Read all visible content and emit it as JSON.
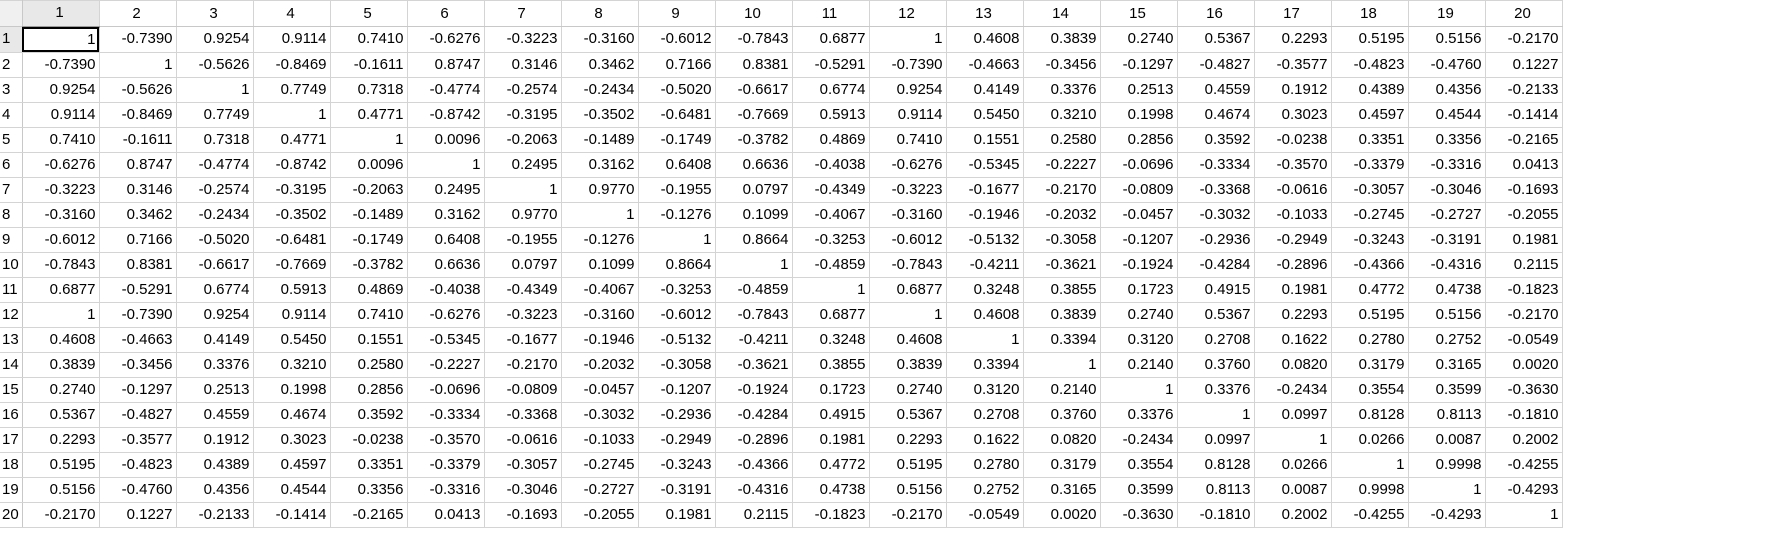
{
  "sheet": {
    "columns": [
      "1",
      "2",
      "3",
      "4",
      "5",
      "6",
      "7",
      "8",
      "9",
      "10",
      "11",
      "12",
      "13",
      "14",
      "15",
      "16",
      "17",
      "18",
      "19",
      "20"
    ],
    "rows": [
      {
        "label": "1",
        "cells": [
          "1",
          "-0.7390",
          "0.9254",
          "0.9114",
          "0.7410",
          "-0.6276",
          "-0.3223",
          "-0.3160",
          "-0.6012",
          "-0.7843",
          "0.6877",
          "1",
          "0.4608",
          "0.3839",
          "0.2740",
          "0.5367",
          "0.2293",
          "0.5195",
          "0.5156",
          "-0.2170"
        ]
      },
      {
        "label": "2",
        "cells": [
          "-0.7390",
          "1",
          "-0.5626",
          "-0.8469",
          "-0.1611",
          "0.8747",
          "0.3146",
          "0.3462",
          "0.7166",
          "0.8381",
          "-0.5291",
          "-0.7390",
          "-0.4663",
          "-0.3456",
          "-0.1297",
          "-0.4827",
          "-0.3577",
          "-0.4823",
          "-0.4760",
          "0.1227"
        ]
      },
      {
        "label": "3",
        "cells": [
          "0.9254",
          "-0.5626",
          "1",
          "0.7749",
          "0.7318",
          "-0.4774",
          "-0.2574",
          "-0.2434",
          "-0.5020",
          "-0.6617",
          "0.6774",
          "0.9254",
          "0.4149",
          "0.3376",
          "0.2513",
          "0.4559",
          "0.1912",
          "0.4389",
          "0.4356",
          "-0.2133"
        ]
      },
      {
        "label": "4",
        "cells": [
          "0.9114",
          "-0.8469",
          "0.7749",
          "1",
          "0.4771",
          "-0.8742",
          "-0.3195",
          "-0.3502",
          "-0.6481",
          "-0.7669",
          "0.5913",
          "0.9114",
          "0.5450",
          "0.3210",
          "0.1998",
          "0.4674",
          "0.3023",
          "0.4597",
          "0.4544",
          "-0.1414"
        ]
      },
      {
        "label": "5",
        "cells": [
          "0.7410",
          "-0.1611",
          "0.7318",
          "0.4771",
          "1",
          "0.0096",
          "-0.2063",
          "-0.1489",
          "-0.1749",
          "-0.3782",
          "0.4869",
          "0.7410",
          "0.1551",
          "0.2580",
          "0.2856",
          "0.3592",
          "-0.0238",
          "0.3351",
          "0.3356",
          "-0.2165"
        ]
      },
      {
        "label": "6",
        "cells": [
          "-0.6276",
          "0.8747",
          "-0.4774",
          "-0.8742",
          "0.0096",
          "1",
          "0.2495",
          "0.3162",
          "0.6408",
          "0.6636",
          "-0.4038",
          "-0.6276",
          "-0.5345",
          "-0.2227",
          "-0.0696",
          "-0.3334",
          "-0.3570",
          "-0.3379",
          "-0.3316",
          "0.0413"
        ]
      },
      {
        "label": "7",
        "cells": [
          "-0.3223",
          "0.3146",
          "-0.2574",
          "-0.3195",
          "-0.2063",
          "0.2495",
          "1",
          "0.9770",
          "-0.1955",
          "0.0797",
          "-0.4349",
          "-0.3223",
          "-0.1677",
          "-0.2170",
          "-0.0809",
          "-0.3368",
          "-0.0616",
          "-0.3057",
          "-0.3046",
          "-0.1693"
        ]
      },
      {
        "label": "8",
        "cells": [
          "-0.3160",
          "0.3462",
          "-0.2434",
          "-0.3502",
          "-0.1489",
          "0.3162",
          "0.9770",
          "1",
          "-0.1276",
          "0.1099",
          "-0.4067",
          "-0.3160",
          "-0.1946",
          "-0.2032",
          "-0.0457",
          "-0.3032",
          "-0.1033",
          "-0.2745",
          "-0.2727",
          "-0.2055"
        ]
      },
      {
        "label": "9",
        "cells": [
          "-0.6012",
          "0.7166",
          "-0.5020",
          "-0.6481",
          "-0.1749",
          "0.6408",
          "-0.1955",
          "-0.1276",
          "1",
          "0.8664",
          "-0.3253",
          "-0.6012",
          "-0.5132",
          "-0.3058",
          "-0.1207",
          "-0.2936",
          "-0.2949",
          "-0.3243",
          "-0.3191",
          "0.1981"
        ]
      },
      {
        "label": "10",
        "cells": [
          "-0.7843",
          "0.8381",
          "-0.6617",
          "-0.7669",
          "-0.3782",
          "0.6636",
          "0.0797",
          "0.1099",
          "0.8664",
          "1",
          "-0.4859",
          "-0.7843",
          "-0.4211",
          "-0.3621",
          "-0.1924",
          "-0.4284",
          "-0.2896",
          "-0.4366",
          "-0.4316",
          "0.2115"
        ]
      },
      {
        "label": "11",
        "cells": [
          "0.6877",
          "-0.5291",
          "0.6774",
          "0.5913",
          "0.4869",
          "-0.4038",
          "-0.4349",
          "-0.4067",
          "-0.3253",
          "-0.4859",
          "1",
          "0.6877",
          "0.3248",
          "0.3855",
          "0.1723",
          "0.4915",
          "0.1981",
          "0.4772",
          "0.4738",
          "-0.1823"
        ]
      },
      {
        "label": "12",
        "cells": [
          "1",
          "-0.7390",
          "0.9254",
          "0.9114",
          "0.7410",
          "-0.6276",
          "-0.3223",
          "-0.3160",
          "-0.6012",
          "-0.7843",
          "0.6877",
          "1",
          "0.4608",
          "0.3839",
          "0.2740",
          "0.5367",
          "0.2293",
          "0.5195",
          "0.5156",
          "-0.2170"
        ]
      },
      {
        "label": "13",
        "cells": [
          "0.4608",
          "-0.4663",
          "0.4149",
          "0.5450",
          "0.1551",
          "-0.5345",
          "-0.1677",
          "-0.1946",
          "-0.5132",
          "-0.4211",
          "0.3248",
          "0.4608",
          "1",
          "0.3394",
          "0.3120",
          "0.2708",
          "0.1622",
          "0.2780",
          "0.2752",
          "-0.0549"
        ]
      },
      {
        "label": "14",
        "cells": [
          "0.3839",
          "-0.3456",
          "0.3376",
          "0.3210",
          "0.2580",
          "-0.2227",
          "-0.2170",
          "-0.2032",
          "-0.3058",
          "-0.3621",
          "0.3855",
          "0.3839",
          "0.3394",
          "1",
          "0.2140",
          "0.3760",
          "0.0820",
          "0.3179",
          "0.3165",
          "0.0020"
        ]
      },
      {
        "label": "15",
        "cells": [
          "0.2740",
          "-0.1297",
          "0.2513",
          "0.1998",
          "0.2856",
          "-0.0696",
          "-0.0809",
          "-0.0457",
          "-0.1207",
          "-0.1924",
          "0.1723",
          "0.2740",
          "0.3120",
          "0.2140",
          "1",
          "0.3376",
          "-0.2434",
          "0.3554",
          "0.3599",
          "-0.3630"
        ]
      },
      {
        "label": "16",
        "cells": [
          "0.5367",
          "-0.4827",
          "0.4559",
          "0.4674",
          "0.3592",
          "-0.3334",
          "-0.3368",
          "-0.3032",
          "-0.2936",
          "-0.4284",
          "0.4915",
          "0.5367",
          "0.2708",
          "0.3760",
          "0.3376",
          "1",
          "0.0997",
          "0.8128",
          "0.8113",
          "-0.1810"
        ]
      },
      {
        "label": "17",
        "cells": [
          "0.2293",
          "-0.3577",
          "0.1912",
          "0.3023",
          "-0.0238",
          "-0.3570",
          "-0.0616",
          "-0.1033",
          "-0.2949",
          "-0.2896",
          "0.1981",
          "0.2293",
          "0.1622",
          "0.0820",
          "-0.2434",
          "0.0997",
          "1",
          "0.0266",
          "0.0087",
          "0.2002"
        ]
      },
      {
        "label": "18",
        "cells": [
          "0.5195",
          "-0.4823",
          "0.4389",
          "0.4597",
          "0.3351",
          "-0.3379",
          "-0.3057",
          "-0.2745",
          "-0.3243",
          "-0.4366",
          "0.4772",
          "0.5195",
          "0.2780",
          "0.3179",
          "0.3554",
          "0.8128",
          "0.0266",
          "1",
          "0.9998",
          "-0.4255"
        ]
      },
      {
        "label": "19",
        "cells": [
          "0.5156",
          "-0.4760",
          "0.4356",
          "0.4544",
          "0.3356",
          "-0.3316",
          "-0.3046",
          "-0.2727",
          "-0.3191",
          "-0.4316",
          "0.4738",
          "0.5156",
          "0.2752",
          "0.3165",
          "0.3599",
          "0.8113",
          "0.0087",
          "0.9998",
          "1",
          "-0.4293"
        ]
      },
      {
        "label": "20",
        "cells": [
          "-0.2170",
          "0.1227",
          "-0.2133",
          "-0.1414",
          "-0.2165",
          "0.0413",
          "-0.1693",
          "-0.2055",
          "0.1981",
          "0.2115",
          "-0.1823",
          "-0.2170",
          "-0.0549",
          "0.0020",
          "-0.3630",
          "-0.1810",
          "0.2002",
          "-0.4255",
          "-0.4293",
          "1"
        ]
      }
    ]
  }
}
